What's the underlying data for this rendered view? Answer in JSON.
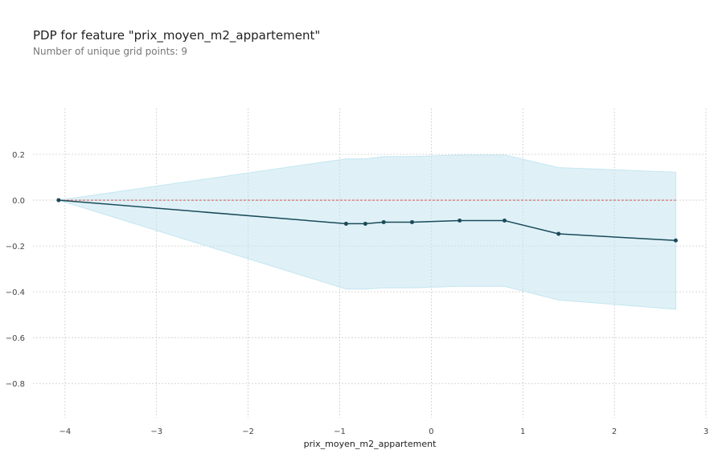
{
  "chart_data": {
    "type": "line",
    "title": "PDP for feature \"prix_moyen_m2_appartement\"",
    "subtitle": "Number of unique grid points: 9",
    "xlabel": "prix_moyen_m2_appartement",
    "ylabel": "",
    "xlim": [
      -4.35,
      3.0
    ],
    "ylim": [
      -0.95,
      0.4
    ],
    "grid": true,
    "x_ticks": [
      -4,
      -3,
      -2,
      -1,
      0,
      1,
      2,
      3
    ],
    "x_tick_labels": [
      "−4",
      "−3",
      "−2",
      "−1",
      "0",
      "1",
      "2",
      "3"
    ],
    "y_ticks": [
      0.2,
      0.0,
      -0.2,
      -0.4,
      -0.6,
      -0.8
    ],
    "y_tick_labels": [
      "0.2",
      "0.0",
      "−0.2",
      "−0.4",
      "−0.6",
      "−0.8"
    ],
    "baseline": 0.0,
    "series": [
      {
        "name": "pdp",
        "x": [
          -4.07,
          -0.93,
          -0.72,
          -0.52,
          -0.21,
          0.31,
          0.8,
          1.39,
          2.67
        ],
        "values": [
          0.0,
          -0.103,
          -0.103,
          -0.096,
          -0.096,
          -0.089,
          -0.089,
          -0.147,
          -0.176
        ]
      }
    ],
    "band": {
      "name": "pdp-std",
      "x": [
        -4.07,
        -0.93,
        -0.72,
        -0.52,
        -0.21,
        0.31,
        0.8,
        1.39,
        2.67
      ],
      "upper": [
        0.0,
        0.18,
        0.18,
        0.19,
        0.19,
        0.197,
        0.197,
        0.142,
        0.122
      ],
      "lower": [
        0.0,
        -0.388,
        -0.388,
        -0.383,
        -0.383,
        -0.376,
        -0.376,
        -0.436,
        -0.476
      ]
    },
    "colors": {
      "line": "#1a4a5a",
      "band": "#c4e6f1",
      "baseline": "#d9534f",
      "grid": "#cccccc"
    }
  }
}
